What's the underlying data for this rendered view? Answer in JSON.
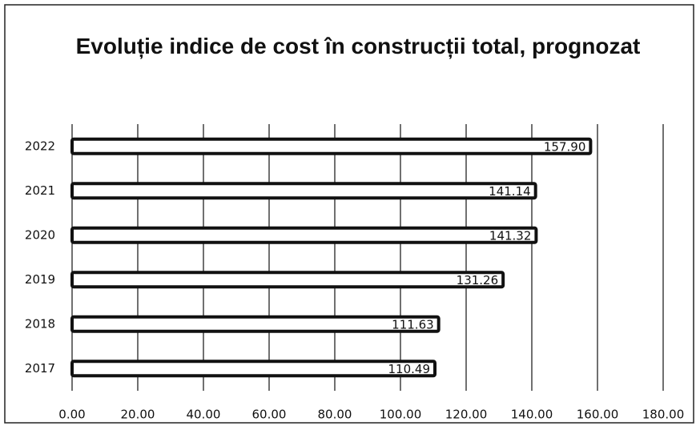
{
  "chart_data": {
    "type": "bar",
    "orientation": "horizontal",
    "title": "Evoluție indice de cost în construcții total, prognozat",
    "categories": [
      "2022",
      "2021",
      "2020",
      "2019",
      "2018",
      "2017"
    ],
    "values": [
      157.9,
      141.14,
      141.32,
      131.26,
      111.63,
      110.49
    ],
    "value_labels": [
      "157.90",
      "141.14",
      "141.32",
      "131.26",
      "111.63",
      "110.49"
    ],
    "color": "#ffffff",
    "xlim": [
      0,
      180
    ],
    "xticks": [
      {
        "value": 0,
        "label": "0.00"
      },
      {
        "value": 20,
        "label": "20.00"
      },
      {
        "value": 40,
        "label": "40.00"
      },
      {
        "value": 60,
        "label": "60.00"
      },
      {
        "value": 80,
        "label": "80.00"
      },
      {
        "value": 100,
        "label": "100.00"
      },
      {
        "value": 120,
        "label": "120.00"
      },
      {
        "value": 140,
        "label": "140.00"
      },
      {
        "value": 160,
        "label": "160.00"
      },
      {
        "value": 180,
        "label": "180.00"
      }
    ],
    "grid": true
  }
}
